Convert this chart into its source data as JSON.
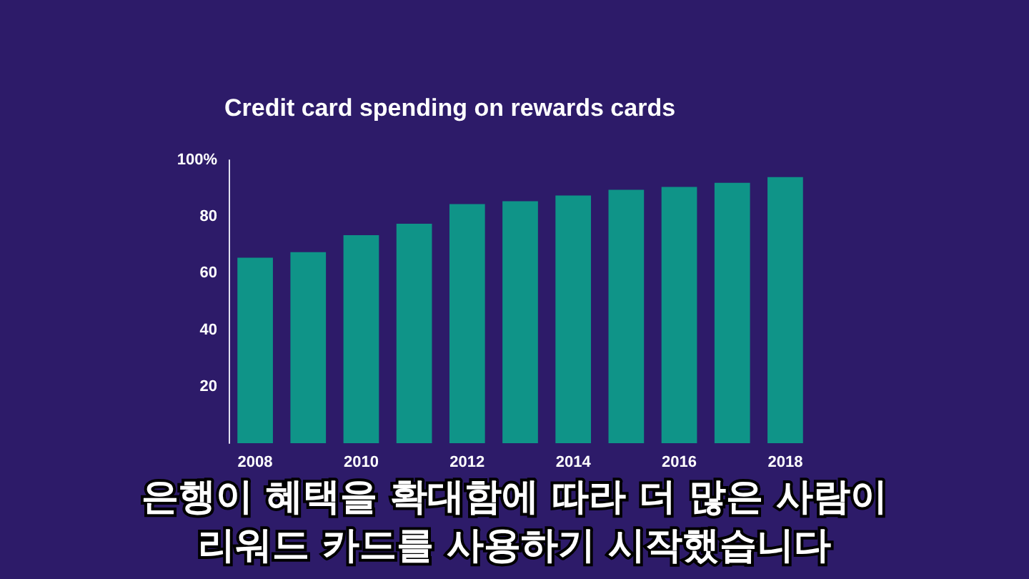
{
  "chart_data": {
    "type": "bar",
    "title": "Credit card spending on rewards cards",
    "categories": [
      "2008",
      null,
      "2010",
      null,
      "2012",
      null,
      "2014",
      null,
      "2016",
      null,
      "2018"
    ],
    "values": [
      65.5,
      67.5,
      73.5,
      77.5,
      84.5,
      85.5,
      87.5,
      89.5,
      90.5,
      92,
      94
    ],
    "color": "#0f9488",
    "ylim": [
      0,
      100
    ],
    "yticks": [
      20,
      40,
      60,
      80,
      {
        "value": 100,
        "label": "100%"
      }
    ],
    "grid": false,
    "annotations": [
      "은행이 혜택을 확대함에 따라 더 많은 사람이",
      "리워드 카드를 사용하기 시작했습니다"
    ]
  }
}
